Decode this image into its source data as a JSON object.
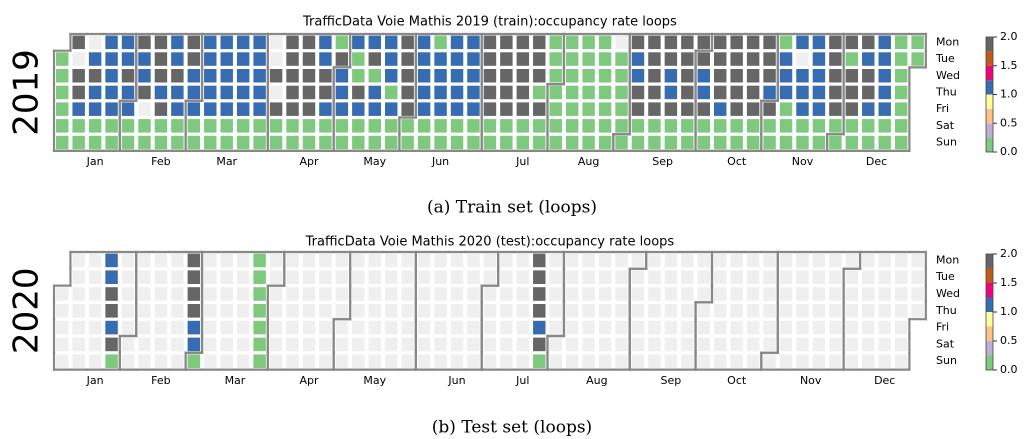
{
  "chart_data": [
    {
      "type": "calendar_heatmap",
      "title": "TrafficData Voie Mathis 2019 (train):occupancy rate loops",
      "year": 2019,
      "caption": "(a) Train set (loops)",
      "weekdays": [
        "Mon",
        "Tue",
        "Wed",
        "Thu",
        "Fri",
        "Sat",
        "Sun"
      ],
      "months": [
        "Jan",
        "Feb",
        "Mar",
        "Apr",
        "May",
        "Jun",
        "Jul",
        "Aug",
        "Sep",
        "Oct",
        "Nov",
        "Dec"
      ],
      "colormap": [
        "#7fc97f",
        "#beaed4",
        "#fdc086",
        "#ffff99",
        "#386cb0",
        "#f0027f",
        "#bf5b17",
        "#666666"
      ],
      "clim": [
        0,
        2
      ],
      "cbar_ticks": [
        {
          "value": 0,
          "label": "0.0"
        },
        {
          "value": 0.5,
          "label": "0.5"
        },
        {
          "value": 1,
          "label": "1.0"
        },
        {
          "value": 1.5,
          "label": "1.5"
        },
        {
          "value": 2,
          "label": "2.0"
        }
      ],
      "weeks": [
        [
          null,
          0.1,
          0.1,
          0.1,
          0.1,
          0.1,
          0.1
        ],
        [
          1.9,
          null,
          1.9,
          1.9,
          1.1,
          0.1,
          0.1
        ],
        [
          null,
          1.1,
          1.9,
          1.1,
          1.1,
          0.1,
          0.1
        ],
        [
          1.1,
          1.1,
          1.1,
          1.1,
          1.1,
          0.1,
          0.1
        ],
        [
          1.1,
          1.1,
          1.9,
          1.1,
          1.1,
          0.1,
          0.1
        ],
        [
          1.9,
          1.1,
          1.1,
          1.9,
          null,
          0.1,
          0.1
        ],
        [
          1.9,
          1.9,
          1.9,
          1.1,
          1.9,
          0.1,
          0.1
        ],
        [
          1.1,
          1.1,
          1.9,
          1.1,
          1.1,
          0.1,
          0.1
        ],
        [
          1.9,
          1.9,
          1.1,
          1.1,
          1.1,
          0.1,
          0.1
        ],
        [
          1.1,
          1.1,
          1.1,
          1.1,
          1.1,
          0.1,
          0.1
        ],
        [
          1.1,
          1.1,
          1.1,
          1.1,
          1.1,
          0.1,
          0.1
        ],
        [
          1.1,
          1.1,
          1.1,
          1.1,
          1.1,
          0.1,
          0.1
        ],
        [
          1.1,
          1.1,
          1.1,
          1.1,
          1.1,
          0.1,
          0.1
        ],
        [
          null,
          null,
          1.9,
          null,
          1.9,
          0.1,
          0.1
        ],
        [
          1.9,
          1.9,
          1.9,
          1.9,
          1.9,
          0.1,
          0.1
        ],
        [
          1.9,
          1.9,
          1.9,
          1.9,
          1.9,
          0.1,
          0.1
        ],
        [
          1.1,
          1.1,
          1.9,
          1.9,
          1.1,
          0.1,
          0.1
        ],
        [
          0.1,
          1.9,
          1.1,
          1.1,
          1.1,
          0.1,
          0.1
        ],
        [
          1.1,
          0.1,
          0.1,
          1.9,
          1.1,
          0.1,
          0.1
        ],
        [
          1.1,
          1.9,
          0.1,
          1.1,
          1.1,
          0.1,
          0.1
        ],
        [
          1.1,
          1.1,
          1.1,
          0.1,
          1.1,
          0.1,
          0.1
        ],
        [
          1.9,
          1.9,
          1.9,
          1.9,
          1.9,
          0.1,
          0.1
        ],
        [
          1.1,
          1.1,
          1.1,
          1.1,
          1.1,
          0.1,
          0.1
        ],
        [
          0.1,
          1.1,
          1.1,
          1.1,
          1.1,
          0.1,
          0.1
        ],
        [
          1.1,
          1.1,
          1.1,
          1.1,
          1.1,
          0.1,
          0.1
        ],
        [
          1.1,
          1.1,
          1.1,
          1.1,
          1.1,
          0.1,
          0.1
        ],
        [
          1.9,
          1.9,
          1.9,
          1.9,
          1.9,
          0.1,
          0.1
        ],
        [
          1.9,
          1.9,
          1.9,
          1.9,
          1.9,
          0.1,
          0.1
        ],
        [
          1.9,
          1.9,
          1.9,
          1.9,
          1.9,
          0.1,
          0.1
        ],
        [
          1.9,
          1.9,
          1.9,
          0.1,
          1.9,
          0.1,
          0.1
        ],
        [
          0.1,
          0.1,
          0.1,
          0.1,
          0.1,
          0.1,
          0.1
        ],
        [
          0.1,
          0.1,
          0.1,
          0.1,
          0.1,
          0.1,
          0.1
        ],
        [
          0.1,
          0.1,
          0.1,
          0.1,
          0.1,
          0.1,
          0.1
        ],
        [
          0.1,
          0.1,
          0.1,
          0.1,
          0.1,
          0.1,
          0.1
        ],
        [
          null,
          0.1,
          0.1,
          0.1,
          0.1,
          0.1,
          0.1
        ],
        [
          1.9,
          1.1,
          1.1,
          1.9,
          1.9,
          0.1,
          0.1
        ],
        [
          1.9,
          1.9,
          1.9,
          1.9,
          1.9,
          0.1,
          0.1
        ],
        [
          1.9,
          1.9,
          1.1,
          1.1,
          1.9,
          0.1,
          0.1
        ],
        [
          1.9,
          1.9,
          1.9,
          1.9,
          1.9,
          0.1,
          0.1
        ],
        [
          1.9,
          1.9,
          1.1,
          1.1,
          1.9,
          0.1,
          0.1
        ],
        [
          1.9,
          1.9,
          1.9,
          1.9,
          1.1,
          0.1,
          0.1
        ],
        [
          1.9,
          1.9,
          1.9,
          1.9,
          1.9,
          0.1,
          0.1
        ],
        [
          1.9,
          1.9,
          1.9,
          1.9,
          1.9,
          0.1,
          0.1
        ],
        [
          1.9,
          1.9,
          1.9,
          1.1,
          1.9,
          0.1,
          0.1
        ],
        [
          0.1,
          1.1,
          1.1,
          1.1,
          0.1,
          0.1,
          0.1
        ],
        [
          1.1,
          null,
          1.1,
          1.1,
          1.1,
          0.1,
          0.1
        ],
        [
          1.1,
          1.1,
          1.1,
          1.1,
          1.1,
          0.1,
          0.1
        ],
        [
          1.9,
          1.9,
          1.9,
          1.9,
          1.9,
          0.1,
          0.1
        ],
        [
          1.9,
          0.1,
          1.9,
          1.9,
          1.9,
          0.1,
          0.1
        ],
        [
          1.9,
          1.1,
          1.9,
          1.9,
          1.1,
          0.1,
          0.1
        ],
        [
          1.1,
          1.1,
          1.1,
          1.1,
          1.1,
          0.1,
          0.1
        ],
        [
          0.1,
          0.1,
          0.1,
          0.1,
          0.1,
          0.1,
          0.1
        ],
        [
          0.1,
          0.1,
          null,
          null,
          null,
          null,
          null
        ]
      ]
    },
    {
      "type": "calendar_heatmap",
      "title": "TrafficData Voie Mathis 2020 (test):occupancy rate loops",
      "year": 2020,
      "caption": "(b) Test set (loops)",
      "weekdays": [
        "Mon",
        "Tue",
        "Wed",
        "Thu",
        "Fri",
        "Sat",
        "Sun"
      ],
      "months": [
        "Jan",
        "Feb",
        "Mar",
        "Apr",
        "May",
        "Jun",
        "Jul",
        "Aug",
        "Sep",
        "Oct",
        "Nov",
        "Dec"
      ],
      "colormap": [
        "#7fc97f",
        "#beaed4",
        "#fdc086",
        "#ffff99",
        "#386cb0",
        "#f0027f",
        "#bf5b17",
        "#666666"
      ],
      "clim": [
        0,
        2
      ],
      "cbar_ticks": [
        {
          "value": 0,
          "label": "0.0"
        },
        {
          "value": 0.5,
          "label": "0.5"
        },
        {
          "value": 1,
          "label": "1.0"
        },
        {
          "value": 1.5,
          "label": "1.5"
        },
        {
          "value": 2,
          "label": "2.0"
        }
      ],
      "weeks": [
        [
          null,
          null,
          null,
          null,
          null,
          null,
          null
        ],
        [
          null,
          null,
          null,
          null,
          null,
          null,
          null
        ],
        [
          null,
          null,
          null,
          null,
          null,
          null,
          null
        ],
        [
          1.1,
          1.1,
          1.9,
          1.9,
          1.1,
          1.9,
          0.1
        ],
        [
          null,
          null,
          null,
          null,
          null,
          null,
          null
        ],
        [
          null,
          null,
          null,
          null,
          null,
          null,
          null
        ],
        [
          null,
          null,
          null,
          null,
          null,
          null,
          null
        ],
        [
          null,
          null,
          null,
          null,
          null,
          null,
          null
        ],
        [
          1.9,
          1.9,
          1.9,
          1.9,
          1.1,
          1.1,
          0.1
        ],
        [
          null,
          null,
          null,
          null,
          null,
          null,
          null
        ],
        [
          null,
          null,
          null,
          null,
          null,
          null,
          null
        ],
        [
          null,
          null,
          null,
          null,
          null,
          null,
          null
        ],
        [
          0.1,
          0.1,
          0.1,
          0.1,
          0.1,
          0.1,
          0.1
        ],
        [
          null,
          null,
          null,
          null,
          null,
          null,
          null
        ],
        [
          null,
          null,
          null,
          null,
          null,
          null,
          null
        ],
        [
          null,
          null,
          null,
          null,
          null,
          null,
          null
        ],
        [
          null,
          null,
          null,
          null,
          null,
          null,
          null
        ],
        [
          null,
          null,
          null,
          null,
          null,
          null,
          null
        ],
        [
          null,
          null,
          null,
          null,
          null,
          null,
          null
        ],
        [
          null,
          null,
          null,
          null,
          null,
          null,
          null
        ],
        [
          null,
          null,
          null,
          null,
          null,
          null,
          null
        ],
        [
          null,
          null,
          null,
          null,
          null,
          null,
          null
        ],
        [
          null,
          null,
          null,
          null,
          null,
          null,
          null
        ],
        [
          null,
          null,
          null,
          null,
          null,
          null,
          null
        ],
        [
          null,
          null,
          null,
          null,
          null,
          null,
          null
        ],
        [
          null,
          null,
          null,
          null,
          null,
          null,
          null
        ],
        [
          null,
          null,
          null,
          null,
          null,
          null,
          null
        ],
        [
          null,
          null,
          null,
          null,
          null,
          null,
          null
        ],
        [
          null,
          null,
          null,
          null,
          null,
          null,
          null
        ],
        [
          1.9,
          1.9,
          1.9,
          1.9,
          1.1,
          1.9,
          0.1
        ],
        [
          null,
          null,
          null,
          null,
          null,
          null,
          null
        ],
        [
          null,
          null,
          null,
          null,
          null,
          null,
          null
        ],
        [
          null,
          null,
          null,
          null,
          null,
          null,
          null
        ],
        [
          null,
          null,
          null,
          null,
          null,
          null,
          null
        ],
        [
          null,
          null,
          null,
          null,
          null,
          null,
          null
        ],
        [
          null,
          null,
          null,
          null,
          null,
          null,
          null
        ],
        [
          null,
          null,
          null,
          null,
          null,
          null,
          null
        ],
        [
          null,
          null,
          null,
          null,
          null,
          null,
          null
        ],
        [
          null,
          null,
          null,
          null,
          null,
          null,
          null
        ],
        [
          null,
          null,
          null,
          null,
          null,
          null,
          null
        ],
        [
          null,
          null,
          null,
          null,
          null,
          null,
          null
        ],
        [
          null,
          null,
          null,
          null,
          null,
          null,
          null
        ],
        [
          null,
          null,
          null,
          null,
          null,
          null,
          null
        ],
        [
          null,
          null,
          null,
          null,
          null,
          null,
          null
        ],
        [
          null,
          null,
          null,
          null,
          null,
          null,
          null
        ],
        [
          null,
          null,
          null,
          null,
          null,
          null,
          null
        ],
        [
          null,
          null,
          null,
          null,
          null,
          null,
          null
        ],
        [
          null,
          null,
          null,
          null,
          null,
          null,
          null
        ],
        [
          null,
          null,
          null,
          null,
          null,
          null,
          null
        ],
        [
          null,
          null,
          null,
          null,
          null,
          null,
          null
        ],
        [
          null,
          null,
          null,
          null,
          null,
          null,
          null
        ],
        [
          null,
          null,
          null,
          null,
          null,
          null,
          null
        ],
        [
          null,
          null,
          null,
          null,
          null,
          null,
          null
        ]
      ]
    }
  ]
}
